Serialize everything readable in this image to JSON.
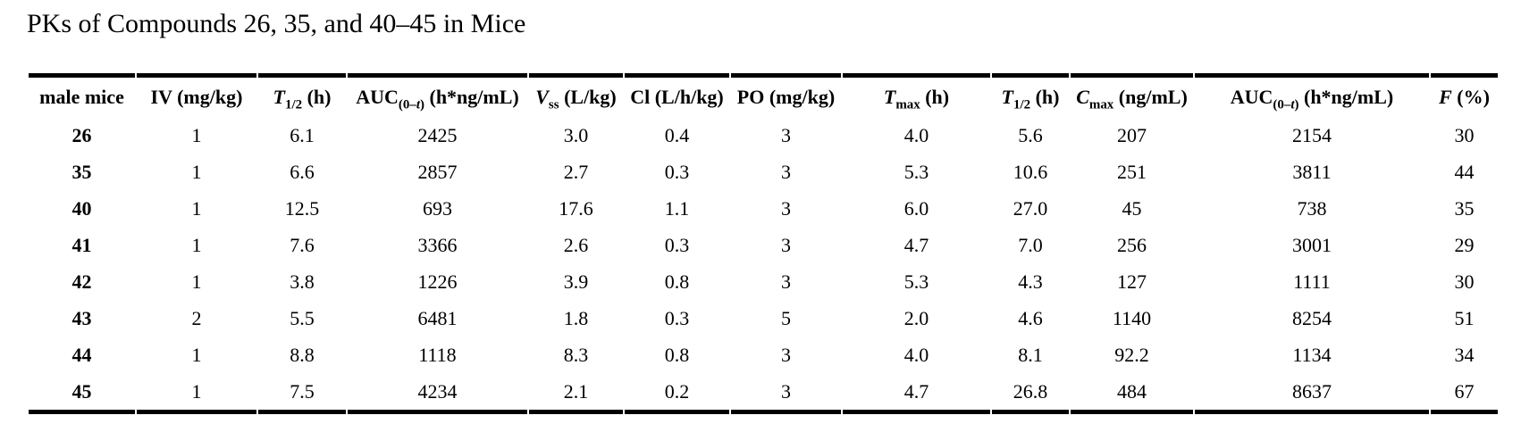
{
  "page": {
    "title": "PKs of Compounds 26, 35, and 40–45 in Mice"
  },
  "colors": {
    "text": "#000000",
    "rule": "#000000",
    "background": "#ffffff"
  },
  "table": {
    "columns": [
      {
        "id": "male-mice",
        "parts": [
          {
            "text": "male mice"
          }
        ]
      },
      {
        "id": "iv-dose",
        "parts": [
          {
            "text": "IV (mg/kg)"
          }
        ]
      },
      {
        "id": "t-half-iv",
        "parts": [
          {
            "text": "T",
            "italic": true
          },
          {
            "text": "1/2",
            "sub": true
          },
          {
            "text": " (h)"
          }
        ]
      },
      {
        "id": "auc-iv",
        "parts": [
          {
            "text": "AUC"
          },
          {
            "text": "(0–",
            "sub": true
          },
          {
            "text": "t",
            "sub": true,
            "italic": true
          },
          {
            "text": ")",
            "sub": true
          },
          {
            "text": " (h*ng/mL)"
          }
        ]
      },
      {
        "id": "vss",
        "parts": [
          {
            "text": "V",
            "italic": true
          },
          {
            "text": "ss",
            "sub": true
          },
          {
            "text": " (L/kg)"
          }
        ]
      },
      {
        "id": "cl",
        "parts": [
          {
            "text": "Cl (L/h/kg)"
          }
        ]
      },
      {
        "id": "po-dose",
        "parts": [
          {
            "text": "PO (mg/kg)"
          }
        ]
      },
      {
        "id": "tmax",
        "parts": [
          {
            "text": "T",
            "italic": true
          },
          {
            "text": "max",
            "sub": true
          },
          {
            "text": " (h)"
          }
        ]
      },
      {
        "id": "t-half-po",
        "parts": [
          {
            "text": "T",
            "italic": true
          },
          {
            "text": "1/2",
            "sub": true
          },
          {
            "text": " (h)"
          }
        ]
      },
      {
        "id": "cmax",
        "parts": [
          {
            "text": "C",
            "italic": true
          },
          {
            "text": "max",
            "sub": true
          },
          {
            "text": " (ng/mL)"
          }
        ]
      },
      {
        "id": "auc-po",
        "parts": [
          {
            "text": "AUC"
          },
          {
            "text": "(0–",
            "sub": true
          },
          {
            "text": "t",
            "sub": true,
            "italic": true
          },
          {
            "text": ")",
            "sub": true
          },
          {
            "text": " (h*ng/mL)"
          }
        ]
      },
      {
        "id": "f-percent",
        "parts": [
          {
            "text": "F",
            "italic": true
          },
          {
            "text": " (%)"
          }
        ]
      }
    ],
    "rows": [
      [
        "26",
        "1",
        "6.1",
        "2425",
        "3.0",
        "0.4",
        "3",
        "4.0",
        "5.6",
        "207",
        "2154",
        "30"
      ],
      [
        "35",
        "1",
        "6.6",
        "2857",
        "2.7",
        "0.3",
        "3",
        "5.3",
        "10.6",
        "251",
        "3811",
        "44"
      ],
      [
        "40",
        "1",
        "12.5",
        "693",
        "17.6",
        "1.1",
        "3",
        "6.0",
        "27.0",
        "45",
        "738",
        "35"
      ],
      [
        "41",
        "1",
        "7.6",
        "3366",
        "2.6",
        "0.3",
        "3",
        "4.7",
        "7.0",
        "256",
        "3001",
        "29"
      ],
      [
        "42",
        "1",
        "3.8",
        "1226",
        "3.9",
        "0.8",
        "3",
        "5.3",
        "4.3",
        "127",
        "1111",
        "30"
      ],
      [
        "43",
        "2",
        "5.5",
        "6481",
        "1.8",
        "0.3",
        "5",
        "2.0",
        "4.6",
        "1140",
        "8254",
        "51"
      ],
      [
        "44",
        "1",
        "8.8",
        "1118",
        "8.3",
        "0.8",
        "3",
        "4.0",
        "8.1",
        "92.2",
        "1134",
        "34"
      ],
      [
        "45",
        "1",
        "7.5",
        "4234",
        "2.1",
        "0.2",
        "3",
        "4.7",
        "26.8",
        "484",
        "8637",
        "67"
      ]
    ]
  }
}
